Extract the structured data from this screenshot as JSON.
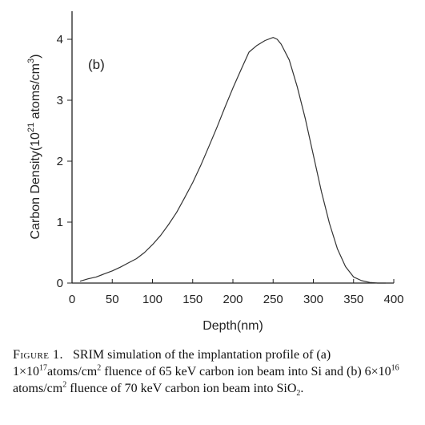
{
  "chart_data": {
    "type": "line",
    "xlabel": "Depth(nm)",
    "ylabel_parts": {
      "base": "Carbon Density(10",
      "exp": "21",
      "mid": " atoms/cm",
      "exp2": "3",
      "end": ")"
    },
    "annotation": "(b)",
    "xlim": [
      0,
      400
    ],
    "ylim": [
      0,
      4.3
    ],
    "xticks": [
      0,
      50,
      100,
      150,
      200,
      250,
      300,
      350,
      400
    ],
    "yticks": [
      0,
      1,
      2,
      3,
      4
    ],
    "grid": false,
    "series": [
      {
        "color": "#333333",
        "x": [
          10,
          20,
          30,
          40,
          50,
          60,
          70,
          80,
          90,
          100,
          110,
          120,
          130,
          140,
          150,
          160,
          170,
          180,
          190,
          200,
          210,
          220,
          230,
          240,
          250,
          255,
          260,
          270,
          280,
          290,
          300,
          310,
          320,
          330,
          340,
          350,
          360,
          370,
          380,
          390
        ],
        "y": [
          0.03,
          0.07,
          0.1,
          0.15,
          0.2,
          0.26,
          0.33,
          0.4,
          0.5,
          0.63,
          0.78,
          0.96,
          1.16,
          1.4,
          1.65,
          1.93,
          2.24,
          2.55,
          2.88,
          3.2,
          3.5,
          3.79,
          3.9,
          3.98,
          4.03,
          4.0,
          3.92,
          3.66,
          3.22,
          2.7,
          2.1,
          1.5,
          0.98,
          0.56,
          0.27,
          0.1,
          0.04,
          0.01,
          0.0,
          0.0
        ]
      }
    ]
  },
  "caption": {
    "label": "Figure 1.",
    "p1": "SRIM simulation of the implantation profile of (a) 1×10",
    "e1": "17",
    "p2": "atoms/cm",
    "e2": "2",
    "p3": " fluence of 65 keV carbon ion beam into Si and (b) 6×10",
    "e3": "16",
    "p4": " atoms/cm",
    "e4": "2",
    "p5": " fluence of 70 keV carbon ion beam into SiO",
    "s5": "2",
    "p6": "."
  }
}
